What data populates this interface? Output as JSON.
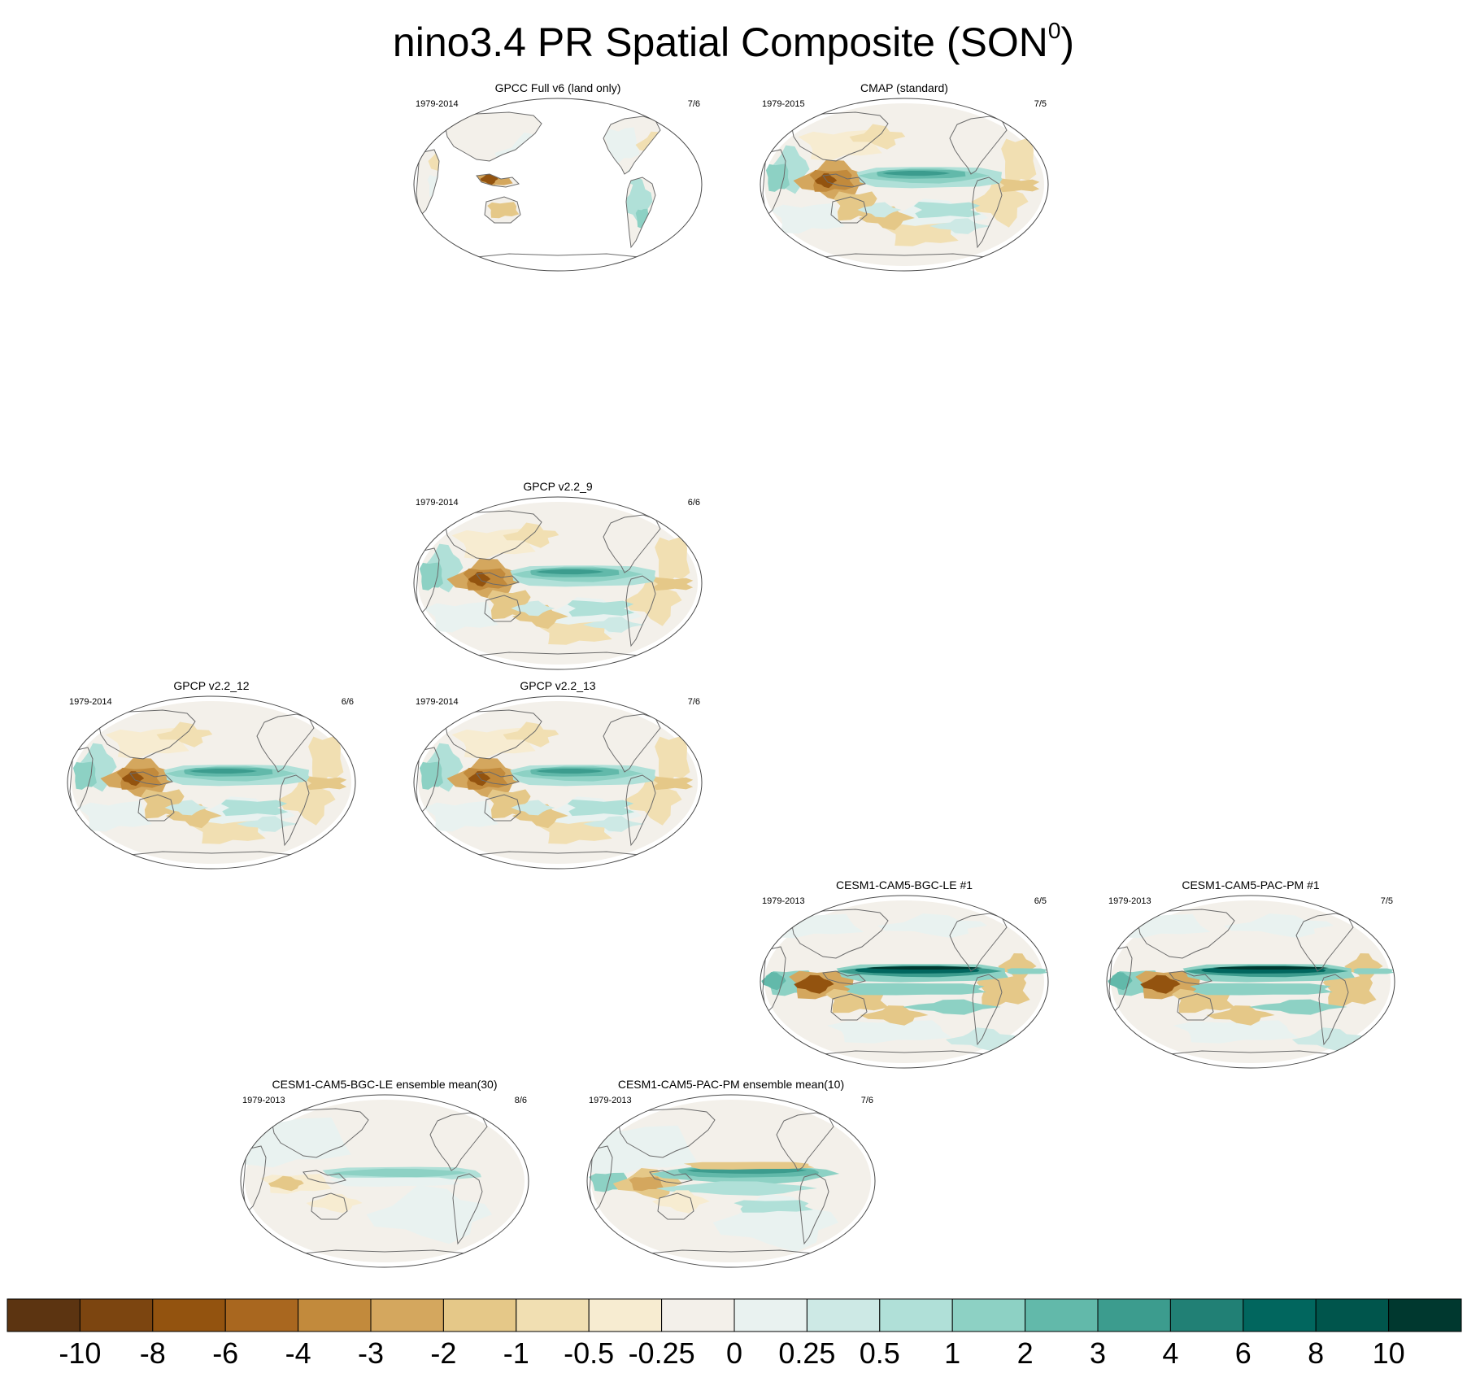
{
  "title": {
    "main": "nino3.4 PR Spatial Composite (SON",
    "superscript": "0",
    "close": ")"
  },
  "chart_data": {
    "type": "heatmap",
    "description_scale": "precipitation composite anomaly",
    "panels": [
      {
        "id": "gpcc",
        "title": "GPCC Full v6 (land only)",
        "years": "1979-2014",
        "ratio": "7/6",
        "pattern": "land"
      },
      {
        "id": "cmap",
        "title": "CMAP (standard)",
        "years": "1979-2015",
        "ratio": "7/5",
        "pattern": "obs"
      },
      {
        "id": "gpcp9",
        "title": "GPCP v2.2_9",
        "years": "1979-2014",
        "ratio": "6/6",
        "pattern": "obs"
      },
      {
        "id": "gpcp12",
        "title": "GPCP v2.2_12",
        "years": "1979-2014",
        "ratio": "6/6",
        "pattern": "obs"
      },
      {
        "id": "gpcp13",
        "title": "GPCP v2.2_13",
        "years": "1979-2014",
        "ratio": "7/6",
        "pattern": "obs"
      },
      {
        "id": "bgcle1",
        "title": "CESM1-CAM5-BGC-LE #1",
        "years": "1979-2013",
        "ratio": "6/5",
        "pattern": "model"
      },
      {
        "id": "pacpm1",
        "title": "CESM1-CAM5-PAC-PM #1",
        "years": "1979-2013",
        "ratio": "7/5",
        "pattern": "model"
      },
      {
        "id": "bgcle-mean",
        "title": "CESM1-CAM5-BGC-LE ensemble mean(30)",
        "years": "1979-2013",
        "ratio": "8/6",
        "pattern": "weak"
      },
      {
        "id": "pacpm-mean",
        "title": "CESM1-CAM5-PAC-PM ensemble mean(10)",
        "years": "1979-2013",
        "ratio": "7/6",
        "pattern": "modelmean"
      }
    ],
    "colorbar": {
      "labels": [
        "-10",
        "-8",
        "-6",
        "-4",
        "-3",
        "-2",
        "-1",
        "-0.5",
        "-0.25",
        "0",
        "0.25",
        "0.5",
        "1",
        "2",
        "3",
        "4",
        "6",
        "8",
        "10"
      ],
      "colors": [
        "#5c3411",
        "#7c4510",
        "#93530f",
        "#a9671f",
        "#c28a3c",
        "#d4a75e",
        "#e5c888",
        "#f1dfb2",
        "#f7ecd1",
        "#f3f0ea",
        "#e9f2f0",
        "#cde9e5",
        "#b0e0d8",
        "#8dd1c4",
        "#62b9aa",
        "#3c9c8e",
        "#218075",
        "#01665e",
        "#00554c",
        "#00382f"
      ]
    }
  },
  "colors": {
    "land_outline": "#6b6b6b",
    "frame": "#4a4a4a",
    "neutral": "#f3f0ea"
  }
}
